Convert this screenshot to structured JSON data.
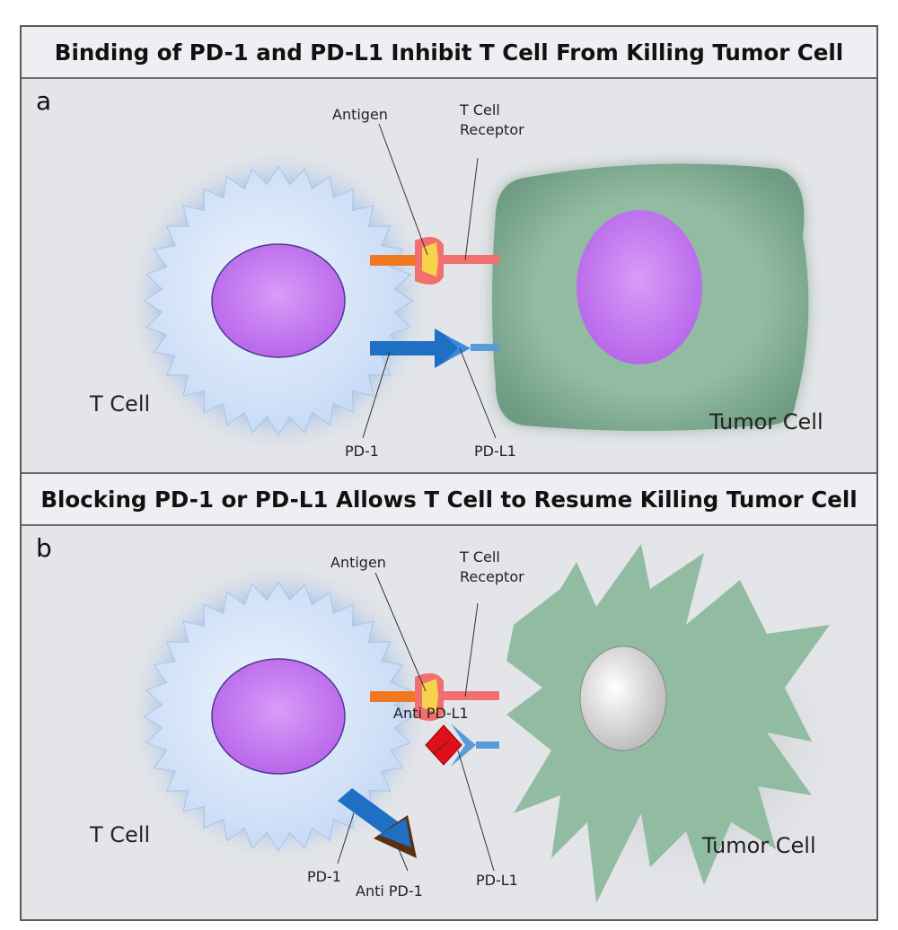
{
  "panel_a": {
    "title": "Binding of PD-1 and PD-L1 Inhibit T Cell From Killing Tumor Cell",
    "letter": "a",
    "labels": {
      "antigen": "Antigen",
      "tcr_line1": "T Cell",
      "tcr_line2": "Receptor",
      "t_cell": "T Cell",
      "tumor_cell": "Tumor Cell",
      "pd1": "PD-1",
      "pdl1": "PD-L1"
    }
  },
  "panel_b": {
    "title": "Blocking PD-1 or PD-L1 Allows T Cell to Resume Killing Tumor Cell",
    "letter": "b",
    "labels": {
      "antigen": "Antigen",
      "tcr_line1": "T Cell",
      "tcr_line2": "Receptor",
      "anti_pdl1": "Anti PD-L1",
      "t_cell": "T Cell",
      "tumor_cell": "Tumor Cell",
      "pd1": "PD-1",
      "anti_pd1": "Anti PD-1",
      "pdl1": "PD-L1"
    }
  },
  "colors": {
    "t_cell_body": "#cfe0f7",
    "nucleus": "#c77cf0",
    "tumor_cell": "#8fb99f",
    "antigen": "#f7d24a",
    "tcr": "#f26f6f",
    "pd1": "#1f6fc4",
    "pdl1": "#5a9ad8",
    "anti_pdl1": "#e0101a",
    "anti_pd1": "#5a3010",
    "dead_nucleus": "#e8e8e8"
  }
}
